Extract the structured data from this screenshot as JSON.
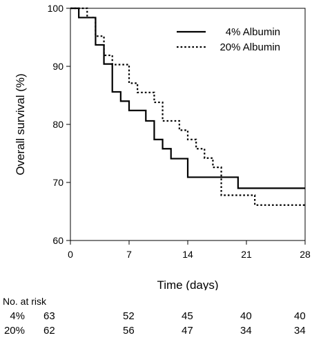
{
  "chart_data": {
    "type": "line",
    "step": true,
    "xlabel": "Time (days)",
    "ylabel": "Overall survival (%)",
    "xlim": [
      0,
      28
    ],
    "ylim": [
      60,
      100
    ],
    "xticks": [
      0,
      7,
      14,
      21,
      28
    ],
    "yticks": [
      60,
      70,
      80,
      90,
      100
    ],
    "grid": false,
    "legend_position": "top-right",
    "series": [
      {
        "name": "4% Albumin",
        "style": "solid",
        "color": "#000000",
        "points": [
          [
            0,
            100
          ],
          [
            1,
            98.4
          ],
          [
            3,
            93.7
          ],
          [
            4,
            90.4
          ],
          [
            5,
            85.6
          ],
          [
            6,
            84.0
          ],
          [
            7,
            82.4
          ],
          [
            9,
            80.6
          ],
          [
            10,
            77.4
          ],
          [
            11,
            75.8
          ],
          [
            12,
            74.1
          ],
          [
            14,
            70.9
          ],
          [
            20,
            69.0
          ],
          [
            28,
            69.0
          ]
        ]
      },
      {
        "name": "20% Albumin",
        "style": "dotted",
        "color": "#000000",
        "points": [
          [
            0,
            100
          ],
          [
            2,
            98.4
          ],
          [
            3,
            95.2
          ],
          [
            4,
            91.9
          ],
          [
            5,
            90.3
          ],
          [
            7,
            87.1
          ],
          [
            8,
            85.5
          ],
          [
            10,
            83.8
          ],
          [
            11,
            80.6
          ],
          [
            13,
            79.0
          ],
          [
            14,
            77.4
          ],
          [
            15,
            75.8
          ],
          [
            16,
            74.2
          ],
          [
            17,
            72.6
          ],
          [
            18,
            67.8
          ],
          [
            22,
            66.1
          ],
          [
            28,
            66.1
          ]
        ]
      }
    ]
  },
  "risk_table": {
    "title": "No. at risk",
    "rows": [
      {
        "group": "4%",
        "values": [
          "63",
          "52",
          "45",
          "40",
          "40"
        ]
      },
      {
        "group": "20%",
        "values": [
          "62",
          "56",
          "47",
          "34",
          "34"
        ]
      }
    ]
  }
}
